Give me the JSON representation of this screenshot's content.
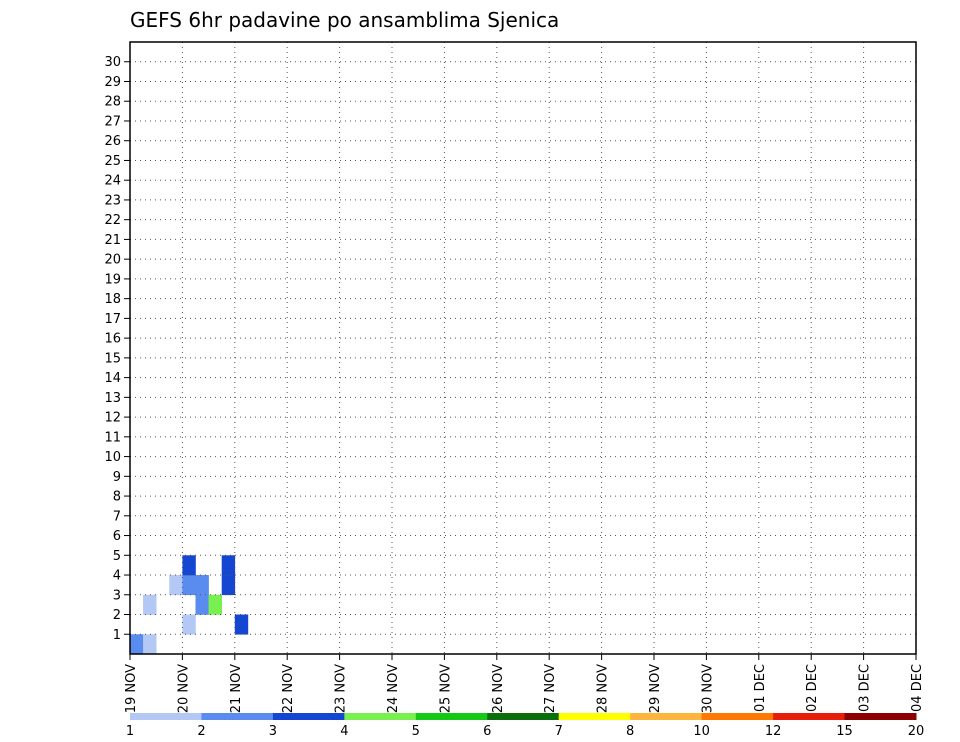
{
  "chart_data": {
    "type": "heatmap",
    "title": "GEFS 6hr padavine po ansamblima Sjenica",
    "xlabel": "",
    "ylabel": "",
    "x_tick_labels": [
      "19 NOV",
      "20 NOV",
      "21 NOV",
      "22 NOV",
      "23 NOV",
      "24 NOV",
      "25 NOV",
      "26 NOV",
      "27 NOV",
      "28 NOV",
      "29 NOV",
      "30 NOV",
      "01 DEC",
      "02 DEC",
      "03 DEC",
      "04 DEC"
    ],
    "y_tick_labels": [
      "1",
      "2",
      "3",
      "4",
      "5",
      "6",
      "7",
      "8",
      "9",
      "10",
      "11",
      "12",
      "13",
      "14",
      "15",
      "16",
      "17",
      "18",
      "19",
      "20",
      "21",
      "22",
      "23",
      "24",
      "25",
      "26",
      "27",
      "28",
      "29",
      "30"
    ],
    "steps_per_day": 4,
    "n_steps": 60,
    "n_members": 31,
    "grid": true,
    "colorbar_levels": [
      "1",
      "2",
      "3",
      "4",
      "5",
      "6",
      "7",
      "8",
      "10",
      "12",
      "15",
      "20"
    ],
    "colorbar_colors": [
      "#b4c8f5",
      "#5a8cf0",
      "#1446d2",
      "#78f050",
      "#14c814",
      "#0a6e0a",
      "#ffff00",
      "#ffb43c",
      "#ff7800",
      "#e61e0a",
      "#8c0000"
    ],
    "cells": [
      [
        0,
        [
          2,
          1,
          0,
          0,
          0,
          0,
          0,
          0,
          0,
          0,
          0,
          0,
          0,
          0,
          0,
          0,
          0,
          0,
          0,
          0,
          0,
          0,
          0,
          0,
          0,
          0,
          0,
          0,
          0,
          0,
          0,
          0,
          0,
          0,
          0,
          0,
          0,
          0,
          0,
          0,
          0,
          0,
          0,
          0,
          0,
          0,
          0,
          0,
          0,
          0,
          0,
          0,
          0,
          0,
          0,
          0,
          0,
          0,
          0,
          0
        ]
      ],
      [
        1,
        [
          0,
          0,
          0,
          0,
          1,
          0,
          0,
          0,
          3,
          0,
          0,
          0,
          0,
          0,
          0,
          0,
          0,
          0,
          0,
          0,
          0,
          0,
          0,
          0,
          0,
          0,
          0,
          0,
          0,
          0,
          0,
          0,
          0,
          0,
          0,
          0,
          0,
          0,
          0,
          0,
          0,
          0,
          0,
          0,
          0,
          0,
          0,
          0,
          0,
          0,
          0,
          0,
          0,
          0,
          0,
          0,
          0,
          0,
          0,
          0
        ]
      ],
      [
        2,
        [
          0,
          1,
          0,
          0,
          0,
          2,
          4,
          0,
          0,
          0,
          0,
          0,
          0,
          0,
          0,
          0,
          0,
          0,
          0,
          0,
          0,
          0,
          0,
          0,
          0,
          0,
          0,
          0,
          0,
          0,
          0,
          0,
          0,
          0,
          0,
          0,
          0,
          0,
          0,
          0,
          0,
          0,
          0,
          0,
          0,
          0,
          0,
          0,
          0,
          0,
          0,
          0,
          0,
          0,
          0,
          0,
          0,
          0,
          0,
          0
        ]
      ],
      [
        3,
        [
          0,
          0,
          0,
          1,
          2,
          2,
          0,
          3,
          0,
          0,
          0,
          0,
          0,
          0,
          0,
          0,
          0,
          0,
          0,
          0,
          0,
          0,
          0,
          0,
          0,
          0,
          0,
          0,
          0,
          0,
          0,
          0,
          0,
          0,
          0,
          0,
          0,
          0,
          0,
          0,
          0,
          0,
          0,
          0,
          0,
          0,
          0,
          0,
          0,
          0,
          0,
          0,
          0,
          0,
          0,
          0,
          0,
          0,
          0,
          0
        ]
      ],
      [
        4,
        [
          0,
          0,
          0,
          0,
          3,
          0,
          0,
          3,
          0,
          0,
          0,
          0,
          0,
          0,
          0,
          0,
          0,
          0,
          0,
          0,
          0,
          0,
          0,
          0,
          0,
          0,
          0,
          0,
          0,
          0,
          0,
          0,
          0,
          0,
          0,
          0,
          0,
          0,
          0,
          0,
          0,
          0,
          0,
          0,
          0,
          0,
          0,
          0,
          0,
          0,
          0,
          0,
          0,
          0,
          0,
          0,
          0,
          0,
          0,
          0
        ]
      ]
    ]
  }
}
